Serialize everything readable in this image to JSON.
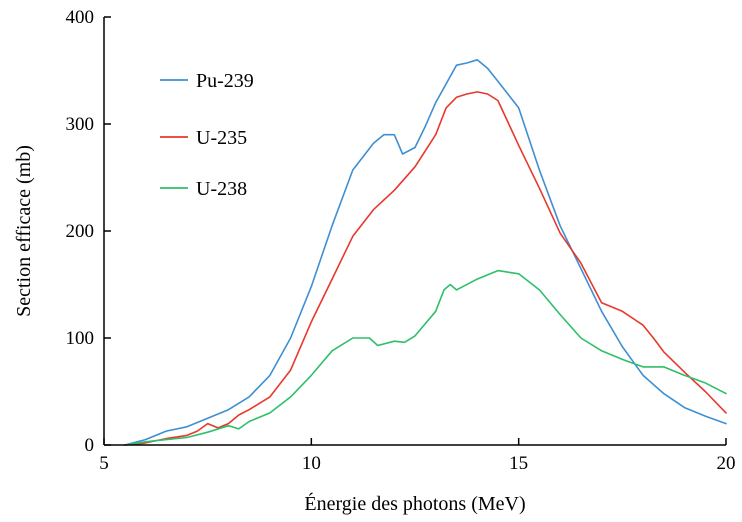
{
  "chart_data": {
    "type": "line",
    "xlabel": "Énergie des photons (MeV)",
    "ylabel": "Section efficace (mb)",
    "xlim": [
      5,
      20
    ],
    "ylim": [
      0,
      400
    ],
    "xticks": [
      5,
      10,
      15,
      20
    ],
    "yticks": [
      0,
      100,
      200,
      300,
      400
    ],
    "grid": false,
    "legend": "top-left",
    "series": [
      {
        "name": "Pu-239",
        "color": "#3f8fd2",
        "x": [
          5.5,
          6,
          6.5,
          7,
          7.5,
          8,
          8.5,
          9,
          9.5,
          10,
          10.5,
          11,
          11.5,
          11.75,
          12,
          12.2,
          12.5,
          12.75,
          13,
          13.5,
          13.75,
          14,
          14.25,
          14.5,
          15,
          15.5,
          16,
          16.5,
          17,
          17.5,
          18,
          18.5,
          19,
          19.5,
          20
        ],
        "y": [
          0,
          5,
          13,
          17,
          25,
          33,
          45,
          65,
          100,
          148,
          205,
          257,
          282,
          290,
          290,
          272,
          278,
          298,
          320,
          355,
          357,
          360,
          352,
          340,
          315,
          257,
          205,
          165,
          125,
          92,
          65,
          48,
          35,
          27,
          20
        ]
      },
      {
        "name": "U-235",
        "color": "#e8382d",
        "x": [
          5.5,
          6,
          6.5,
          7,
          7.25,
          7.5,
          7.75,
          8,
          8.25,
          8.5,
          9,
          9.5,
          10,
          10.5,
          11,
          11.5,
          12,
          12.5,
          13,
          13.25,
          13.5,
          13.75,
          14,
          14.25,
          14.5,
          15,
          15.5,
          16,
          16.5,
          17,
          17.5,
          18,
          18.25,
          18.5,
          19,
          19.5,
          20
        ],
        "y": [
          0,
          2,
          6,
          9,
          13,
          20,
          16,
          20,
          28,
          33,
          45,
          70,
          115,
          155,
          195,
          220,
          238,
          260,
          290,
          315,
          325,
          328,
          330,
          328,
          322,
          280,
          240,
          198,
          170,
          133,
          125,
          112,
          100,
          87,
          68,
          50,
          30
        ]
      },
      {
        "name": "U-238",
        "color": "#2ebf6a",
        "x": [
          5.5,
          6,
          6.5,
          7,
          7.5,
          8,
          8.25,
          8.5,
          9,
          9.5,
          10,
          10.5,
          11,
          11.4,
          11.6,
          12,
          12.25,
          12.5,
          13,
          13.2,
          13.35,
          13.5,
          14,
          14.5,
          15,
          15.5,
          16,
          16.5,
          17,
          17.5,
          18,
          18.5,
          19,
          19.5,
          20
        ],
        "y": [
          0,
          3,
          5,
          7,
          12,
          18,
          15,
          22,
          30,
          45,
          65,
          88,
          100,
          100,
          93,
          97,
          96,
          102,
          125,
          145,
          150,
          145,
          155,
          163,
          160,
          145,
          122,
          100,
          88,
          80,
          73,
          73,
          65,
          58,
          48
        ]
      }
    ]
  }
}
